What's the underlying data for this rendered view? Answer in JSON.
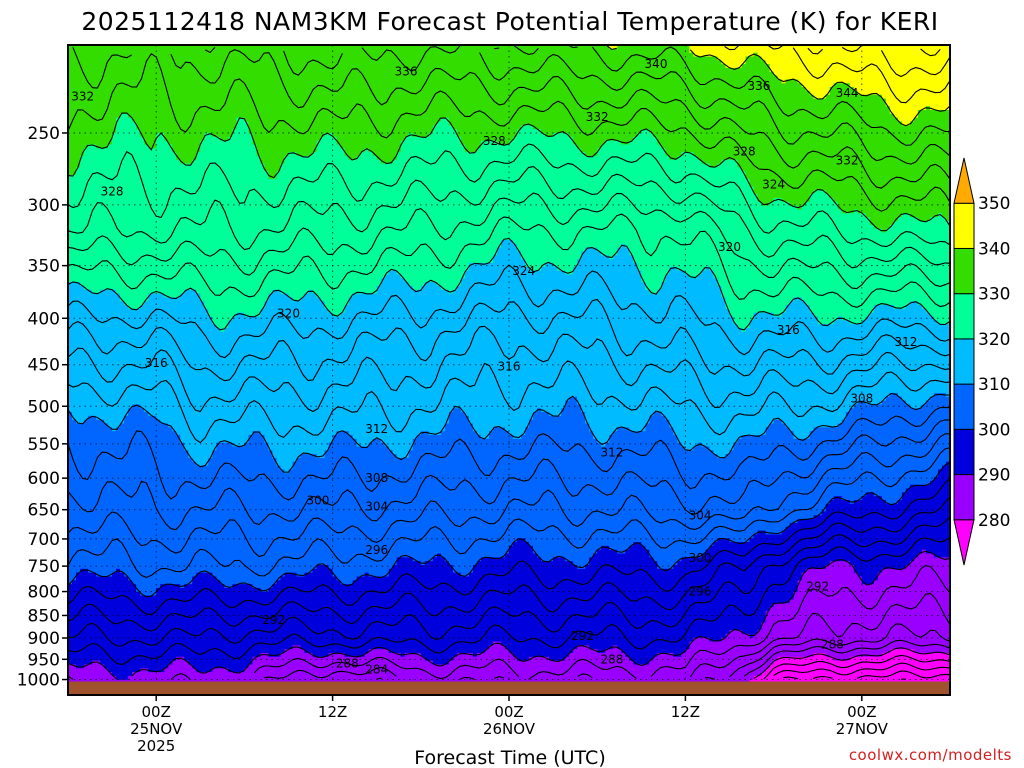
{
  "chart_data": {
    "type": "contour",
    "title": "2025112418 NAM3KM Forecast Potential Temperature (K) for KERI",
    "xlabel": "Forecast Time (UTC)",
    "ylabel": "",
    "credit": "coolwx.com/modelts",
    "y_scale": "log-pressure (hPa, inverted)",
    "ylim": [
      1000,
      200
    ],
    "y_ticks": [
      "250",
      "300",
      "350",
      "400",
      "450",
      "500",
      "550",
      "600",
      "650",
      "700",
      "750",
      "800",
      "850",
      "900",
      "950",
      "1000"
    ],
    "x_ticks": [
      {
        "line1": "00Z",
        "line2": "25NOV",
        "line3": "2025",
        "hour": 6
      },
      {
        "line1": "12Z",
        "line2": "",
        "line3": "",
        "hour": 18
      },
      {
        "line1": "00Z",
        "line2": "26NOV",
        "line3": "",
        "hour": 30
      },
      {
        "line1": "12Z",
        "line2": "",
        "line3": "",
        "hour": 42
      },
      {
        "line1": "00Z",
        "line2": "27NOV",
        "line3": "",
        "hour": 54
      }
    ],
    "xlim_hours": [
      0,
      60
    ],
    "colorbar": {
      "ticks": [
        "280",
        "290",
        "300",
        "310",
        "320",
        "330",
        "340",
        "350"
      ],
      "bins": [
        {
          "lo": 270,
          "hi": 280,
          "color": "#ff00ff"
        },
        {
          "lo": 280,
          "hi": 290,
          "color": "#9900ff"
        },
        {
          "lo": 290,
          "hi": 300,
          "color": "#0000dd"
        },
        {
          "lo": 300,
          "hi": 310,
          "color": "#0066ff"
        },
        {
          "lo": 310,
          "hi": 320,
          "color": "#00bbff"
        },
        {
          "lo": 320,
          "hi": 330,
          "color": "#00ff99"
        },
        {
          "lo": 330,
          "hi": 340,
          "color": "#33dd00"
        },
        {
          "lo": 340,
          "hi": 350,
          "color": "#ffff00"
        },
        {
          "lo": 350,
          "hi": 360,
          "color": "#ffaa00"
        }
      ]
    },
    "contour_interval_K": 2,
    "ground_color": "#a0522d",
    "profiles": [
      {
        "hour": 0,
        "theta": [
          290,
          294,
          301,
          305,
          309,
          316,
          326,
          334
        ]
      },
      {
        "hour": 6,
        "theta": [
          290,
          294,
          302,
          306,
          310,
          316,
          326,
          333
        ]
      },
      {
        "hour": 9,
        "theta": [
          290,
          294,
          302,
          306,
          312,
          318,
          326,
          334
        ]
      },
      {
        "hour": 12,
        "theta": [
          289,
          293,
          302,
          306,
          312,
          318,
          326,
          334
        ]
      },
      {
        "hour": 18,
        "theta": [
          286,
          293,
          301,
          306,
          312,
          317,
          325,
          336
        ]
      },
      {
        "hour": 24,
        "theta": [
          288,
          293,
          300,
          305,
          311,
          316,
          324,
          335
        ]
      },
      {
        "hour": 30,
        "theta": [
          288,
          292,
          299,
          304,
          310,
          314,
          322,
          336
        ]
      },
      {
        "hour": 36,
        "theta": [
          288,
          292,
          299,
          304,
          310,
          315,
          322,
          337
        ]
      },
      {
        "hour": 42,
        "theta": [
          288,
          292,
          299,
          305,
          311,
          317,
          322,
          338
        ]
      },
      {
        "hour": 46,
        "theta": [
          283,
          289,
          296,
          306,
          312,
          318,
          326,
          340
        ]
      },
      {
        "hour": 48,
        "theta": [
          278,
          287,
          293,
          303,
          311,
          318,
          327,
          341
        ]
      },
      {
        "hour": 52,
        "theta": [
          276,
          285,
          290,
          300,
          310,
          318,
          328,
          342
        ]
      },
      {
        "hour": 56,
        "theta": [
          276,
          284,
          290,
          298,
          308,
          317,
          329,
          344
        ]
      },
      {
        "hour": 60,
        "theta": [
          275,
          284,
          289,
          296,
          306,
          317,
          330,
          344
        ]
      }
    ],
    "profile_levels_hPa": [
      975,
      900,
      750,
      650,
      520,
      420,
      320,
      210
    ],
    "contour_labels": [
      {
        "text": "332",
        "hour": 1,
        "p": 228
      },
      {
        "text": "336",
        "hour": 23,
        "p": 214
      },
      {
        "text": "340",
        "hour": 40,
        "p": 210
      },
      {
        "text": "336",
        "hour": 47,
        "p": 222
      },
      {
        "text": "344",
        "hour": 53,
        "p": 226
      },
      {
        "text": "332",
        "hour": 36,
        "p": 240
      },
      {
        "text": "328",
        "hour": 29,
        "p": 255
      },
      {
        "text": "328",
        "hour": 46,
        "p": 262
      },
      {
        "text": "332",
        "hour": 53,
        "p": 268
      },
      {
        "text": "328",
        "hour": 3,
        "p": 290
      },
      {
        "text": "324",
        "hour": 48,
        "p": 285
      },
      {
        "text": "320",
        "hour": 45,
        "p": 334
      },
      {
        "text": "324",
        "hour": 31,
        "p": 355
      },
      {
        "text": "320",
        "hour": 15,
        "p": 395
      },
      {
        "text": "316",
        "hour": 49,
        "p": 412
      },
      {
        "text": "312",
        "hour": 57,
        "p": 425
      },
      {
        "text": "316",
        "hour": 6,
        "p": 448
      },
      {
        "text": "316",
        "hour": 30,
        "p": 452
      },
      {
        "text": "308",
        "hour": 54,
        "p": 490
      },
      {
        "text": "312",
        "hour": 21,
        "p": 530
      },
      {
        "text": "312",
        "hour": 37,
        "p": 562
      },
      {
        "text": "308",
        "hour": 21,
        "p": 600
      },
      {
        "text": "300",
        "hour": 17,
        "p": 635
      },
      {
        "text": "304",
        "hour": 21,
        "p": 645
      },
      {
        "text": "304",
        "hour": 43,
        "p": 660
      },
      {
        "text": "296",
        "hour": 21,
        "p": 720
      },
      {
        "text": "300",
        "hour": 43,
        "p": 735
      },
      {
        "text": "296",
        "hour": 43,
        "p": 800
      },
      {
        "text": "292",
        "hour": 51,
        "p": 790
      },
      {
        "text": "292",
        "hour": 14,
        "p": 860
      },
      {
        "text": "292",
        "hour": 35,
        "p": 895
      },
      {
        "text": "288",
        "hour": 52,
        "p": 915
      },
      {
        "text": "288",
        "hour": 19,
        "p": 960
      },
      {
        "text": "288",
        "hour": 37,
        "p": 950
      },
      {
        "text": "284",
        "hour": 21,
        "p": 975
      }
    ]
  }
}
